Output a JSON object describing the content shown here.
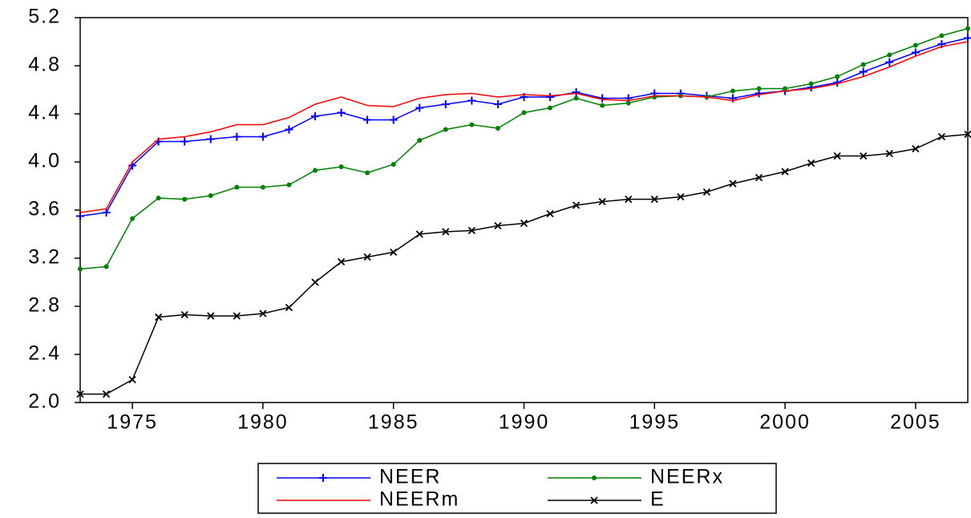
{
  "chart_data": {
    "type": "line",
    "x": [
      1973,
      1974,
      1975,
      1976,
      1977,
      1978,
      1979,
      1980,
      1981,
      1982,
      1983,
      1984,
      1985,
      1986,
      1987,
      1988,
      1989,
      1990,
      1991,
      1992,
      1993,
      1994,
      1995,
      1996,
      1997,
      1998,
      1999,
      2000,
      2001,
      2002,
      2003,
      2004,
      2005,
      2006,
      2007
    ],
    "xlim": [
      1973,
      2007
    ],
    "xticks": [
      1975,
      1980,
      1985,
      1990,
      1995,
      2000,
      2005
    ],
    "ylim": [
      2.0,
      5.2
    ],
    "yticks": [
      {
        "value": 2.0,
        "label": "2.0"
      },
      2.4,
      2.8,
      3.2,
      3.6,
      {
        "value": 4.0,
        "label": "4.0"
      },
      4.4,
      4.8,
      5.2
    ],
    "series": [
      {
        "name": "NEER",
        "color": "#0000ff",
        "marker": "plus",
        "values": [
          3.55,
          3.58,
          3.97,
          4.17,
          4.17,
          4.19,
          4.21,
          4.21,
          4.27,
          4.38,
          4.41,
          4.35,
          4.35,
          4.45,
          4.48,
          4.51,
          4.48,
          4.54,
          4.54,
          4.58,
          4.53,
          4.53,
          4.57,
          4.57,
          4.55,
          4.53,
          4.57,
          4.59,
          4.62,
          4.66,
          4.75,
          4.83,
          4.91,
          4.98,
          5.03
        ]
      },
      {
        "name": "NEERx",
        "color": "#008000",
        "marker": "dot",
        "values": [
          3.11,
          3.13,
          3.53,
          3.7,
          3.69,
          3.72,
          3.79,
          3.79,
          3.81,
          3.93,
          3.96,
          3.91,
          3.98,
          4.18,
          4.27,
          4.31,
          4.28,
          4.41,
          4.45,
          4.53,
          4.47,
          4.49,
          4.54,
          4.55,
          4.54,
          4.59,
          4.61,
          4.61,
          4.65,
          4.71,
          4.81,
          4.89,
          4.97,
          5.05,
          5.11
        ]
      },
      {
        "name": "NEERm",
        "color": "#ff0000",
        "marker": "none",
        "values": [
          3.58,
          3.61,
          4.0,
          4.19,
          4.21,
          4.25,
          4.31,
          4.31,
          4.37,
          4.48,
          4.54,
          4.47,
          4.46,
          4.53,
          4.56,
          4.57,
          4.54,
          4.56,
          4.55,
          4.57,
          4.52,
          4.51,
          4.55,
          4.55,
          4.54,
          4.51,
          4.56,
          4.59,
          4.61,
          4.65,
          4.71,
          4.79,
          4.88,
          4.96,
          5.0
        ]
      },
      {
        "name": "E",
        "color": "#000000",
        "marker": "x",
        "values": [
          2.07,
          2.07,
          2.19,
          2.71,
          2.73,
          2.72,
          2.72,
          2.74,
          2.79,
          3.0,
          3.17,
          3.21,
          3.25,
          3.4,
          3.42,
          3.43,
          3.47,
          3.49,
          3.57,
          3.64,
          3.67,
          3.69,
          3.69,
          3.71,
          3.75,
          3.82,
          3.87,
          3.92,
          3.99,
          4.05,
          4.05,
          4.07,
          4.11,
          4.21,
          4.23
        ]
      }
    ]
  }
}
